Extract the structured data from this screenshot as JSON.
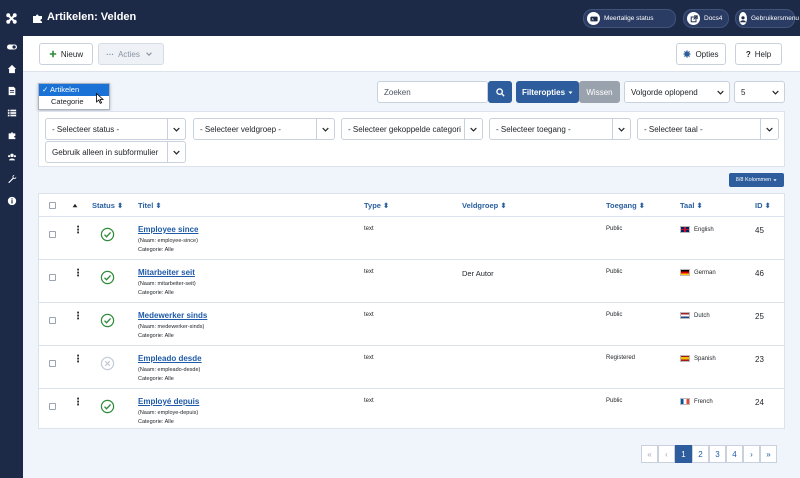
{
  "header": {
    "title": "Artikelen: Velden",
    "multilang_label": "Meertalige status",
    "docs_label": "Docs4",
    "user_menu_label": "Gebruikersmenu"
  },
  "toolbar": {
    "new_label": "Nieuw",
    "actions_label": "Acties",
    "options_label": "Opties",
    "help_label": "Help"
  },
  "context_dropdown": {
    "options": [
      "✓ Artikelen",
      "Categorie"
    ]
  },
  "search": {
    "placeholder": "Zoeken",
    "filter_options_label": "Filteropties",
    "clear_label": "Wissen",
    "ordering_value": "Volgorde oplopend",
    "limit_value": "5"
  },
  "filters": {
    "status": "- Selecteer status -",
    "field_group": "- Selecteer veldgroep -",
    "linked_category": "- Selecteer gekoppelde categori",
    "access": "- Selecteer toegang -",
    "language": "- Selecteer taal -",
    "subform": "Gebruik alleen in subformulier"
  },
  "columns_button": "8/8 Kolommen",
  "table": {
    "headers": {
      "status": "Status",
      "title": "Titel",
      "type": "Type",
      "group": "Veldgroep",
      "access": "Toegang",
      "language": "Taal",
      "id": "ID"
    },
    "rows": [
      {
        "title": "Employee since",
        "alias": "(Naam: employee-since)",
        "category": "Categorie: Alle",
        "type": "text",
        "group": "",
        "access": "Public",
        "language": "English",
        "flag": "gb",
        "id": "45",
        "published": true
      },
      {
        "title": "Mitarbeiter seit",
        "alias": "(Naam: mitarbeiter-seit)",
        "category": "Categorie: Alle",
        "type": "text",
        "group": "Der Autor",
        "access": "Public",
        "language": "German",
        "flag": "de",
        "id": "46",
        "published": true
      },
      {
        "title": "Medewerker sinds",
        "alias": "(Naam: medewerker-sinds)",
        "category": "Categorie: Alle",
        "type": "text",
        "group": "",
        "access": "Public",
        "language": "Dutch",
        "flag": "nl",
        "id": "25",
        "published": true
      },
      {
        "title": "Empleado desde",
        "alias": "(Naam: empleado-desde)",
        "category": "Categorie: Alle",
        "type": "text",
        "group": "",
        "access": "Registered",
        "language": "Spanish",
        "flag": "es",
        "id": "23",
        "published": false
      },
      {
        "title": "Employé depuis",
        "alias": "(Naam: employe-depuis)",
        "category": "Categorie: Alle",
        "type": "text",
        "group": "",
        "access": "Public",
        "language": "French",
        "flag": "fr",
        "id": "24",
        "published": true
      }
    ]
  },
  "pagination": {
    "first": "«",
    "prev": "‹",
    "pages": [
      "1",
      "2",
      "3",
      "4"
    ],
    "next": "›",
    "last": "»",
    "active": "1"
  },
  "colors": {
    "header_bg": "#1c2a48",
    "primary": "#2d5d9c",
    "link": "#1e5aa8",
    "published": "#2e8b3a"
  }
}
